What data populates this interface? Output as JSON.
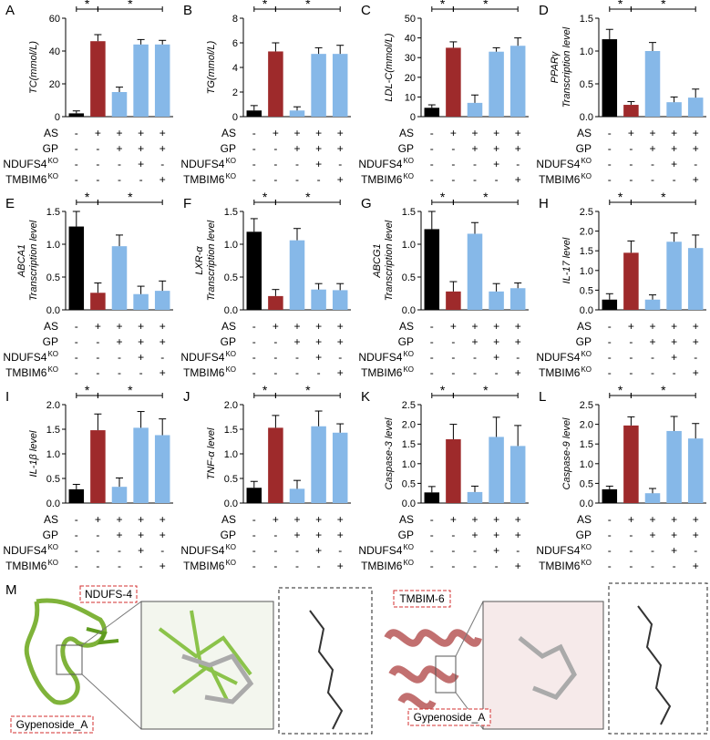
{
  "chart_data": [
    {
      "label": "A",
      "type": "bar",
      "y_label": "TC(mmol/L)",
      "ylim": [
        0,
        60
      ],
      "yticks": [
        0,
        20,
        40,
        60
      ],
      "values": [
        2,
        46,
        15,
        44,
        44
      ],
      "errors": [
        1.5,
        4,
        3,
        3,
        2.5
      ],
      "colors": [
        "#000000",
        "#9e2a2b",
        "#86b8e8",
        "#86b8e8",
        "#86b8e8"
      ],
      "significance_labels": [
        "*",
        "*"
      ],
      "group_rows": [
        {
          "label": "AS",
          "signs": [
            "-",
            "+",
            "+",
            "+",
            "+"
          ]
        },
        {
          "label": "GP",
          "signs": [
            "-",
            "-",
            "+",
            "+",
            "+"
          ]
        },
        {
          "label": "NDUFS4",
          "label_sup": "KO",
          "signs": [
            "-",
            "-",
            "-",
            "+",
            "-"
          ]
        },
        {
          "label": "TMBIM6",
          "label_sup": "KO",
          "signs": [
            "-",
            "-",
            "-",
            "-",
            "+"
          ]
        }
      ]
    },
    {
      "label": "B",
      "type": "bar",
      "y_label": "TG(mmol/L)",
      "ylim": [
        0,
        8
      ],
      "yticks": [
        0,
        2,
        4,
        6,
        8
      ],
      "values": [
        0.5,
        5.3,
        0.5,
        5.1,
        5.1
      ],
      "errors": [
        0.4,
        0.7,
        0.3,
        0.5,
        0.7
      ],
      "colors": [
        "#000000",
        "#9e2a2b",
        "#86b8e8",
        "#86b8e8",
        "#86b8e8"
      ],
      "significance_labels": [
        "*",
        "*"
      ],
      "group_rows": [
        {
          "label": "AS",
          "signs": [
            "-",
            "+",
            "+",
            "+",
            "+"
          ]
        },
        {
          "label": "GP",
          "signs": [
            "-",
            "-",
            "+",
            "+",
            "+"
          ]
        },
        {
          "label": "NDUFS4",
          "label_sup": "KO",
          "signs": [
            "-",
            "-",
            "-",
            "+",
            "-"
          ]
        },
        {
          "label": "TMBIM6",
          "label_sup": "KO",
          "signs": [
            "-",
            "-",
            "-",
            "-",
            "+"
          ]
        }
      ]
    },
    {
      "label": "C",
      "type": "bar",
      "y_label": "LDL-C(mmol/L)",
      "ylim": [
        0,
        50
      ],
      "yticks": [
        0,
        10,
        20,
        30,
        40,
        50
      ],
      "values": [
        4.5,
        35,
        7,
        33,
        36
      ],
      "errors": [
        1.5,
        3,
        4,
        2,
        4
      ],
      "colors": [
        "#000000",
        "#9e2a2b",
        "#86b8e8",
        "#86b8e8",
        "#86b8e8"
      ],
      "significance_labels": [
        "*",
        "*"
      ],
      "group_rows": [
        {
          "label": "AS",
          "signs": [
            "-",
            "+",
            "+",
            "+",
            "+"
          ]
        },
        {
          "label": "GP",
          "signs": [
            "-",
            "-",
            "+",
            "+",
            "+"
          ]
        },
        {
          "label": "NDUFS4",
          "label_sup": "KO",
          "signs": [
            "-",
            "-",
            "-",
            "+",
            "-"
          ]
        },
        {
          "label": "TMBIM6",
          "label_sup": "KO",
          "signs": [
            "-",
            "-",
            "-",
            "-",
            "+"
          ]
        }
      ]
    },
    {
      "label": "D",
      "type": "bar",
      "y_label": [
        "PPARγ",
        "Transcription level"
      ],
      "ylim": [
        0,
        1.5
      ],
      "yticks": [
        {
          "value": 0,
          "label": "0.0"
        },
        0.5,
        {
          "value": 1,
          "label": "1.0"
        },
        1.5
      ],
      "values": [
        1.18,
        0.18,
        1.0,
        0.22,
        0.29
      ],
      "errors": [
        0.15,
        0.05,
        0.13,
        0.08,
        0.13
      ],
      "colors": [
        "#000000",
        "#9e2a2b",
        "#86b8e8",
        "#86b8e8",
        "#86b8e8"
      ],
      "significance_labels": [
        "*",
        "*"
      ],
      "group_rows": [
        {
          "label": "AS",
          "signs": [
            "-",
            "+",
            "+",
            "+",
            "+"
          ]
        },
        {
          "label": "GP",
          "signs": [
            "-",
            "-",
            "+",
            "+",
            "+"
          ]
        },
        {
          "label": "NDUFS4",
          "label_sup": "KO",
          "signs": [
            "-",
            "-",
            "-",
            "+",
            "-"
          ]
        },
        {
          "label": "TMBIM6",
          "label_sup": "KO",
          "signs": [
            "-",
            "-",
            "-",
            "-",
            "+"
          ]
        }
      ]
    },
    {
      "label": "E",
      "type": "bar",
      "y_label": [
        "ABCA1",
        "Transcription level"
      ],
      "ylim": [
        0,
        1.5
      ],
      "yticks": [
        {
          "value": 0,
          "label": "0.0"
        },
        0.5,
        {
          "value": 1,
          "label": "1.0"
        },
        1.5
      ],
      "values": [
        1.27,
        0.26,
        0.97,
        0.24,
        0.29
      ],
      "errors": [
        0.23,
        0.15,
        0.17,
        0.12,
        0.15
      ],
      "colors": [
        "#000000",
        "#9e2a2b",
        "#86b8e8",
        "#86b8e8",
        "#86b8e8"
      ],
      "significance_labels": [
        "*",
        "*"
      ],
      "group_rows": [
        {
          "label": "AS",
          "signs": [
            "-",
            "+",
            "+",
            "+",
            "+"
          ]
        },
        {
          "label": "GP",
          "signs": [
            "-",
            "-",
            "+",
            "+",
            "+"
          ]
        },
        {
          "label": "NDUFS4",
          "label_sup": "KO",
          "signs": [
            "-",
            "-",
            "-",
            "+",
            "-"
          ]
        },
        {
          "label": "TMBIM6",
          "label_sup": "KO",
          "signs": [
            "-",
            "-",
            "-",
            "-",
            "+"
          ]
        }
      ]
    },
    {
      "label": "F",
      "type": "bar",
      "y_label": [
        "LXR-α",
        "Transcription level"
      ],
      "ylim": [
        0,
        1.5
      ],
      "yticks": [
        {
          "value": 0,
          "label": "0.0"
        },
        0.5,
        {
          "value": 1,
          "label": "1.0"
        },
        1.5
      ],
      "values": [
        1.19,
        0.21,
        1.06,
        0.31,
        0.3
      ],
      "errors": [
        0.2,
        0.1,
        0.18,
        0.09,
        0.1
      ],
      "colors": [
        "#000000",
        "#9e2a2b",
        "#86b8e8",
        "#86b8e8",
        "#86b8e8"
      ],
      "significance_labels": [
        "*",
        "*"
      ],
      "group_rows": [
        {
          "label": "AS",
          "signs": [
            "-",
            "+",
            "+",
            "+",
            "+"
          ]
        },
        {
          "label": "GP",
          "signs": [
            "-",
            "-",
            "+",
            "+",
            "+"
          ]
        },
        {
          "label": "NDUFS4",
          "label_sup": "KO",
          "signs": [
            "-",
            "-",
            "-",
            "+",
            "-"
          ]
        },
        {
          "label": "TMBIM6",
          "label_sup": "KO",
          "signs": [
            "-",
            "-",
            "-",
            "-",
            "+"
          ]
        }
      ]
    },
    {
      "label": "G",
      "type": "bar",
      "y_label": [
        "ABCG1",
        "Transcription level"
      ],
      "ylim": [
        0,
        1.5
      ],
      "yticks": [
        {
          "value": 0,
          "label": "0.0"
        },
        0.5,
        {
          "value": 1,
          "label": "1.0"
        },
        1.5
      ],
      "values": [
        1.23,
        0.28,
        1.16,
        0.28,
        0.33
      ],
      "errors": [
        0.27,
        0.15,
        0.17,
        0.12,
        0.08
      ],
      "colors": [
        "#000000",
        "#9e2a2b",
        "#86b8e8",
        "#86b8e8",
        "#86b8e8"
      ],
      "significance_labels": [
        "*",
        "*"
      ],
      "group_rows": [
        {
          "label": "AS",
          "signs": [
            "-",
            "+",
            "+",
            "+",
            "+"
          ]
        },
        {
          "label": "GP",
          "signs": [
            "-",
            "-",
            "+",
            "+",
            "+"
          ]
        },
        {
          "label": "NDUFS4",
          "label_sup": "KO",
          "signs": [
            "-",
            "-",
            "-",
            "+",
            "-"
          ]
        },
        {
          "label": "TMBIM6",
          "label_sup": "KO",
          "signs": [
            "-",
            "-",
            "-",
            "-",
            "+"
          ]
        }
      ]
    },
    {
      "label": "H",
      "type": "bar",
      "y_label": "IL-17 level",
      "ylim": [
        0,
        2.5
      ],
      "yticks": [
        {
          "value": 0,
          "label": "0.0"
        },
        0.5,
        {
          "value": 1,
          "label": "1.0"
        },
        1.5,
        {
          "value": 2,
          "label": "2.0"
        },
        2.5
      ],
      "values": [
        0.26,
        1.45,
        0.26,
        1.73,
        1.57
      ],
      "errors": [
        0.15,
        0.3,
        0.12,
        0.22,
        0.33
      ],
      "colors": [
        "#000000",
        "#9e2a2b",
        "#86b8e8",
        "#86b8e8",
        "#86b8e8"
      ],
      "significance_labels": [
        "*",
        "*"
      ],
      "group_rows": [
        {
          "label": "AS",
          "signs": [
            "-",
            "+",
            "+",
            "+",
            "+"
          ]
        },
        {
          "label": "GP",
          "signs": [
            "-",
            "-",
            "+",
            "+",
            "+"
          ]
        },
        {
          "label": "NDUFS4",
          "label_sup": "KO",
          "signs": [
            "-",
            "-",
            "-",
            "+",
            "-"
          ]
        },
        {
          "label": "TMBIM6",
          "label_sup": "KO",
          "signs": [
            "-",
            "-",
            "-",
            "-",
            "+"
          ]
        }
      ]
    },
    {
      "label": "I",
      "type": "bar",
      "y_label": "IL-1β level",
      "ylim": [
        0,
        2
      ],
      "yticks": [
        {
          "value": 0,
          "label": "0.0"
        },
        0.5,
        {
          "value": 1,
          "label": "1.0"
        },
        1.5,
        {
          "value": 2,
          "label": "2.0"
        }
      ],
      "values": [
        0.28,
        1.48,
        0.33,
        1.53,
        1.38
      ],
      "errors": [
        0.1,
        0.33,
        0.18,
        0.33,
        0.33
      ],
      "colors": [
        "#000000",
        "#9e2a2b",
        "#86b8e8",
        "#86b8e8",
        "#86b8e8"
      ],
      "significance_labels": [
        "*",
        "*"
      ],
      "group_rows": [
        {
          "label": "AS",
          "signs": [
            "-",
            "+",
            "+",
            "+",
            "+"
          ]
        },
        {
          "label": "GP",
          "signs": [
            "-",
            "-",
            "+",
            "+",
            "+"
          ]
        },
        {
          "label": "NDUFS4",
          "label_sup": "KO",
          "signs": [
            "-",
            "-",
            "-",
            "+",
            "-"
          ]
        },
        {
          "label": "TMBIM6",
          "label_sup": "KO",
          "signs": [
            "-",
            "-",
            "-",
            "-",
            "+"
          ]
        }
      ]
    },
    {
      "label": "J",
      "type": "bar",
      "y_label": "TNF-α level",
      "ylim": [
        0,
        2
      ],
      "yticks": [
        {
          "value": 0,
          "label": "0.0"
        },
        0.5,
        {
          "value": 1,
          "label": "1.0"
        },
        1.5,
        {
          "value": 2,
          "label": "2.0"
        }
      ],
      "values": [
        0.31,
        1.53,
        0.29,
        1.56,
        1.43
      ],
      "errors": [
        0.13,
        0.25,
        0.17,
        0.31,
        0.18
      ],
      "colors": [
        "#000000",
        "#9e2a2b",
        "#86b8e8",
        "#86b8e8",
        "#86b8e8"
      ],
      "significance_labels": [
        "*",
        "*"
      ],
      "group_rows": [
        {
          "label": "AS",
          "signs": [
            "-",
            "+",
            "+",
            "+",
            "+"
          ]
        },
        {
          "label": "GP",
          "signs": [
            "-",
            "-",
            "+",
            "+",
            "+"
          ]
        },
        {
          "label": "NDUFS4",
          "label_sup": "KO",
          "signs": [
            "-",
            "-",
            "-",
            "+",
            "-"
          ]
        },
        {
          "label": "TMBIM6",
          "label_sup": "KO",
          "signs": [
            "-",
            "-",
            "-",
            "-",
            "+"
          ]
        }
      ]
    },
    {
      "label": "K",
      "type": "bar",
      "y_label": "Caspase-3 level",
      "ylim": [
        0,
        2.5
      ],
      "yticks": [
        {
          "value": 0,
          "label": "0.0"
        },
        0.5,
        {
          "value": 1,
          "label": "1.0"
        },
        1.5,
        {
          "value": 2,
          "label": "2.0"
        },
        2.5
      ],
      "values": [
        0.27,
        1.62,
        0.28,
        1.68,
        1.45
      ],
      "errors": [
        0.15,
        0.38,
        0.15,
        0.5,
        0.52
      ],
      "colors": [
        "#000000",
        "#9e2a2b",
        "#86b8e8",
        "#86b8e8",
        "#86b8e8"
      ],
      "significance_labels": [
        "*",
        "*"
      ],
      "group_rows": [
        {
          "label": "AS",
          "signs": [
            "-",
            "+",
            "+",
            "+",
            "+"
          ]
        },
        {
          "label": "GP",
          "signs": [
            "-",
            "-",
            "+",
            "+",
            "+"
          ]
        },
        {
          "label": "NDUFS4",
          "label_sup": "KO",
          "signs": [
            "-",
            "-",
            "-",
            "+",
            "-"
          ]
        },
        {
          "label": "TMBIM6",
          "label_sup": "KO",
          "signs": [
            "-",
            "-",
            "-",
            "-",
            "+"
          ]
        }
      ]
    },
    {
      "label": "L",
      "type": "bar",
      "y_label": "Caspase-9 level",
      "ylim": [
        0,
        2.5
      ],
      "yticks": [
        {
          "value": 0,
          "label": "0.0"
        },
        0.5,
        {
          "value": 1,
          "label": "1.0"
        },
        1.5,
        {
          "value": 2,
          "label": "2.0"
        },
        2.5
      ],
      "values": [
        0.35,
        1.97,
        0.25,
        1.83,
        1.64
      ],
      "errors": [
        0.08,
        0.22,
        0.12,
        0.37,
        0.38
      ],
      "colors": [
        "#000000",
        "#9e2a2b",
        "#86b8e8",
        "#86b8e8",
        "#86b8e8"
      ],
      "significance_labels": [
        "*",
        "*"
      ],
      "group_rows": [
        {
          "label": "AS",
          "signs": [
            "-",
            "+",
            "+",
            "+",
            "+"
          ]
        },
        {
          "label": "GP",
          "signs": [
            "-",
            "-",
            "+",
            "+",
            "+"
          ]
        },
        {
          "label": "NDUFS4",
          "label_sup": "KO",
          "signs": [
            "-",
            "-",
            "-",
            "+",
            "-"
          ]
        },
        {
          "label": "TMBIM6",
          "label_sup": "KO",
          "signs": [
            "-",
            "-",
            "-",
            "-",
            "+"
          ]
        }
      ]
    }
  ],
  "docking": {
    "label": "M",
    "complexes": [
      {
        "protein": "NDUFS-4",
        "ligand": "Gypenoside_A"
      },
      {
        "protein": "TMBIM-6",
        "ligand": "Gypenoside_A"
      }
    ]
  }
}
